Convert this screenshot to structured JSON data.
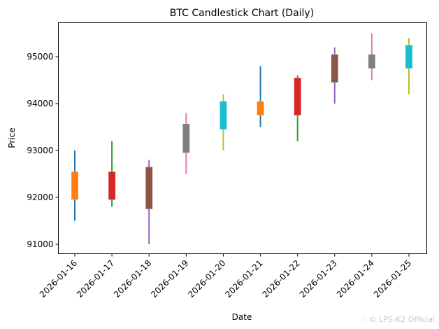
{
  "chart_data": {
    "type": "candlestick",
    "title": "BTC Candlestick Chart (Daily)",
    "xlabel": "Date",
    "ylabel": "Price",
    "ylim": [
      90800,
      95650
    ],
    "yticks": [
      91000,
      92000,
      93000,
      94000,
      95000
    ],
    "grid": false,
    "categories": [
      "2026-01-16",
      "2026-01-17",
      "2026-01-18",
      "2026-01-19",
      "2026-01-20",
      "2026-01-21",
      "2026-01-22",
      "2026-01-23",
      "2026-01-24",
      "2026-01-25"
    ],
    "series": [
      {
        "date": "2026-01-16",
        "open": 91950,
        "close": 92550,
        "high": 93000,
        "low": 91500,
        "body_color": "#ff7f0e",
        "wick_color": "#1f77b4"
      },
      {
        "date": "2026-01-17",
        "open": 92550,
        "close": 91950,
        "high": 93200,
        "low": 91800,
        "body_color": "#d62728",
        "wick_color": "#2ca02c"
      },
      {
        "date": "2026-01-18",
        "open": 92650,
        "close": 91750,
        "high": 92800,
        "low": 91000,
        "body_color": "#8c564b",
        "wick_color": "#9467bd"
      },
      {
        "date": "2026-01-19",
        "open": 92950,
        "close": 93570,
        "high": 93800,
        "low": 92500,
        "body_color": "#7f7f7f",
        "wick_color": "#e377c2"
      },
      {
        "date": "2026-01-20",
        "open": 93450,
        "close": 94050,
        "high": 94200,
        "low": 93000,
        "body_color": "#17becf",
        "wick_color": "#bcbd22"
      },
      {
        "date": "2026-01-21",
        "open": 93750,
        "close": 94050,
        "high": 94800,
        "low": 93500,
        "body_color": "#ff7f0e",
        "wick_color": "#1f77b4"
      },
      {
        "date": "2026-01-22",
        "open": 94550,
        "close": 93750,
        "high": 94600,
        "low": 93200,
        "body_color": "#d62728",
        "wick_color": "#2ca02c"
      },
      {
        "date": "2026-01-23",
        "open": 94450,
        "close": 95050,
        "high": 95200,
        "low": 94000,
        "body_color": "#8c564b",
        "wick_color": "#9467bd"
      },
      {
        "date": "2026-01-24",
        "open": 94750,
        "close": 95050,
        "high": 95500,
        "low": 94500,
        "body_color": "#7f7f7f",
        "wick_color": "#e377c2"
      },
      {
        "date": "2026-01-25",
        "open": 94750,
        "close": 95250,
        "high": 95400,
        "low": 94200,
        "body_color": "#17becf",
        "wick_color": "#bcbd22"
      }
    ]
  },
  "watermark": "♢ © LPS-K2 Official"
}
